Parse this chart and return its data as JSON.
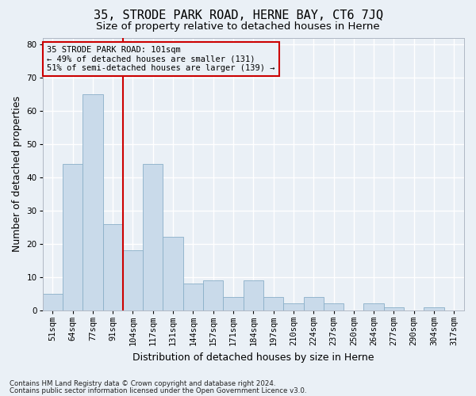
{
  "title": "35, STRODE PARK ROAD, HERNE BAY, CT6 7JQ",
  "subtitle": "Size of property relative to detached houses in Herne",
  "xlabel": "Distribution of detached houses by size in Herne",
  "ylabel": "Number of detached properties",
  "categories": [
    "51sqm",
    "64sqm",
    "77sqm",
    "91sqm",
    "104sqm",
    "117sqm",
    "131sqm",
    "144sqm",
    "157sqm",
    "171sqm",
    "184sqm",
    "197sqm",
    "210sqm",
    "224sqm",
    "237sqm",
    "250sqm",
    "264sqm",
    "277sqm",
    "290sqm",
    "304sqm",
    "317sqm"
  ],
  "values": [
    5,
    44,
    65,
    26,
    18,
    44,
    22,
    8,
    9,
    4,
    9,
    4,
    2,
    4,
    2,
    0,
    2,
    1,
    0,
    1,
    0
  ],
  "bar_color": "#c9daea",
  "bar_edge_color": "#8aafc8",
  "bar_width": 1.0,
  "vline_x": 3.5,
  "vline_color": "#cc0000",
  "ylim": [
    0,
    82
  ],
  "yticks": [
    0,
    10,
    20,
    30,
    40,
    50,
    60,
    70,
    80
  ],
  "annotation_line1": "35 STRODE PARK ROAD: 101sqm",
  "annotation_line2": "← 49% of detached houses are smaller (131)",
  "annotation_line3": "51% of semi-detached houses are larger (139) →",
  "annotation_box_color": "#cc0000",
  "footnote1": "Contains HM Land Registry data © Crown copyright and database right 2024.",
  "footnote2": "Contains public sector information licensed under the Open Government Licence v3.0.",
  "bg_color": "#eaf0f6",
  "grid_color": "#ffffff",
  "title_fontsize": 11,
  "subtitle_fontsize": 9.5,
  "label_fontsize": 9,
  "tick_fontsize": 7.5,
  "annot_fontsize": 7.5
}
